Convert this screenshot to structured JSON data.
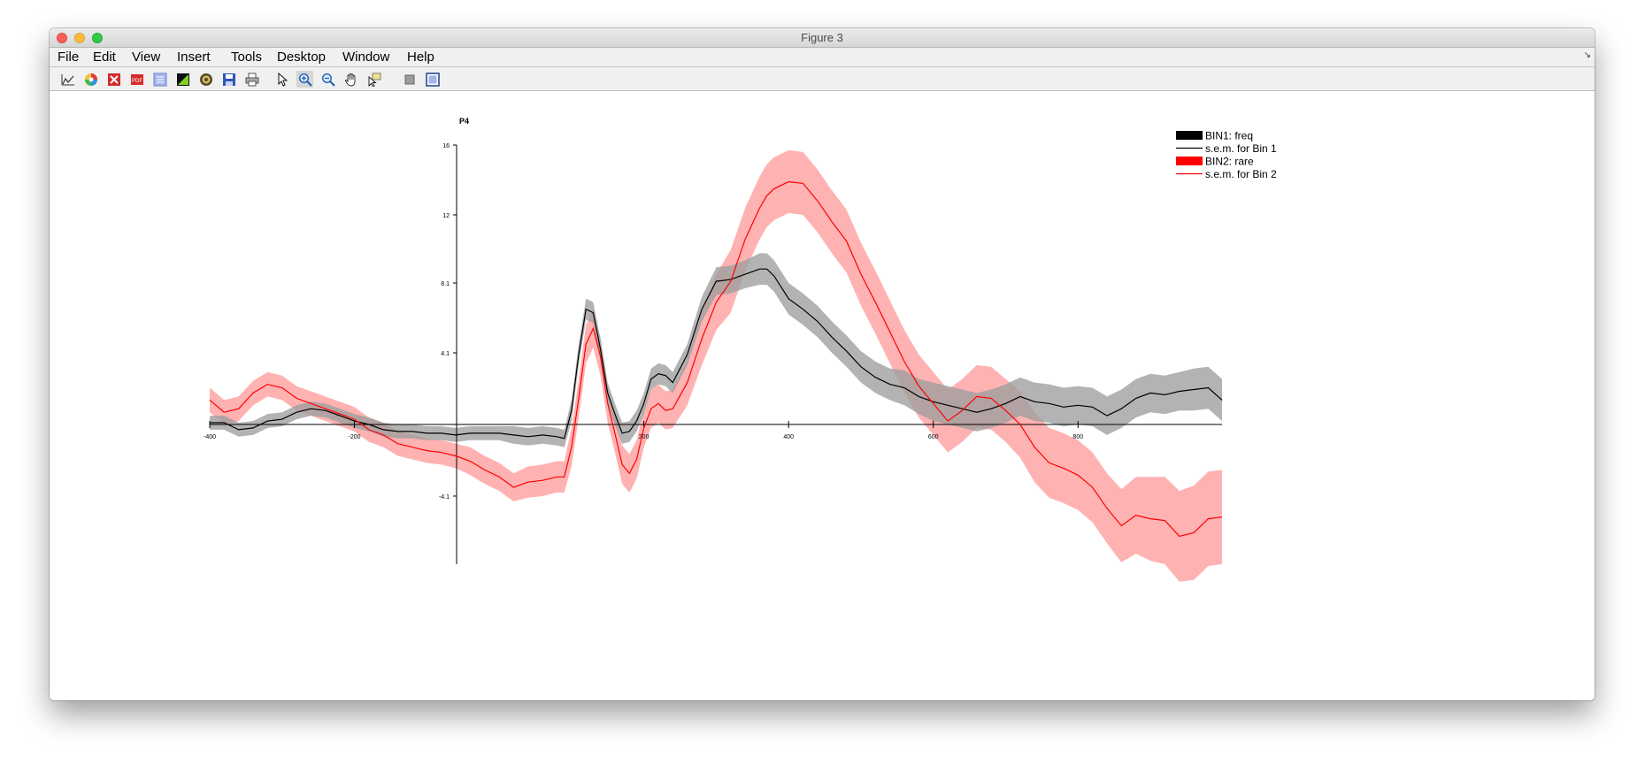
{
  "window": {
    "title": "Figure 3"
  },
  "menu": [
    "File",
    "Edit",
    "View",
    "Insert",
    "Tools",
    "Desktop",
    "Window",
    "Help"
  ],
  "toolbar": [
    "new-figure-icon",
    "colormap-icon",
    "close-figure-icon",
    "export-pdf-icon",
    "insert-colorbar-icon",
    "insert-legend-icon",
    "hide-plot-tools-icon",
    "save-icon",
    "print-icon",
    "pointer-icon",
    "zoom-in-icon",
    "zoom-out-icon",
    "pan-icon",
    "data-cursor-icon",
    "brush-icon",
    "dock-figure-icon"
  ],
  "chart_data": {
    "type": "line",
    "title": "P4",
    "xlabel": "",
    "ylabel": "",
    "xlim": [
      -400,
      999
    ],
    "ylim": [
      -8,
      16
    ],
    "xticks": [
      -400,
      -200,
      200,
      400,
      600,
      800
    ],
    "xtick_labels": [
      "-400",
      "-200",
      "200",
      "400",
      "600",
      "800"
    ],
    "yticks": [
      16,
      12,
      8.1,
      4.1,
      -4.1
    ],
    "ytick_labels": [
      "16",
      "12",
      "8.1",
      "4.1",
      "-4.1"
    ],
    "legend_position": "top-right",
    "legend": [
      "BIN1: freq",
      "s.e.m. for Bin 1",
      "BIN2: rare",
      "s.e.m. for Bin 2"
    ],
    "colors": {
      "bin1": "#000000",
      "bin2": "#ff0000",
      "bin1_band": "#9e9e9e",
      "bin2_band": "#ff9494"
    },
    "series": [
      {
        "name": "BIN1: freq",
        "x": [
          -400,
          -380,
          -360,
          -340,
          -320,
          -300,
          -280,
          -260,
          -240,
          -220,
          -200,
          -180,
          -160,
          -140,
          -120,
          -100,
          -80,
          -60,
          -40,
          -20,
          0,
          20,
          40,
          60,
          80,
          90,
          100,
          110,
          120,
          130,
          140,
          150,
          160,
          170,
          180,
          190,
          200,
          210,
          220,
          230,
          240,
          260,
          280,
          300,
          320,
          340,
          360,
          370,
          380,
          400,
          420,
          440,
          460,
          480,
          500,
          520,
          540,
          560,
          580,
          600,
          620,
          640,
          660,
          680,
          700,
          720,
          740,
          760,
          780,
          800,
          820,
          840,
          860,
          880,
          900,
          920,
          940,
          960,
          980,
          999
        ],
        "y": [
          0.1,
          0.1,
          -0.3,
          -0.2,
          0.2,
          0.3,
          0.7,
          0.9,
          0.8,
          0.5,
          0.2,
          0,
          -0.3,
          -0.4,
          -0.4,
          -0.5,
          -0.5,
          -0.6,
          -0.5,
          -0.5,
          -0.5,
          -0.6,
          -0.7,
          -0.6,
          -0.7,
          -0.8,
          0.8,
          4.0,
          6.6,
          6.4,
          4.3,
          1.8,
          0.6,
          -0.5,
          -0.4,
          0.2,
          1.2,
          2.6,
          2.9,
          2.8,
          2.4,
          4.0,
          6.6,
          8.2,
          8.3,
          8.6,
          8.9,
          8.9,
          8.5,
          7.2,
          6.6,
          5.9,
          5.0,
          4.2,
          3.3,
          2.7,
          2.3,
          2.1,
          1.6,
          1.3,
          1.1,
          0.9,
          0.7,
          0.9,
          1.2,
          1.6,
          1.3,
          1.2,
          1.0,
          1.1,
          1.0,
          0.5,
          0.9,
          1.5,
          1.8,
          1.7,
          1.9,
          2.0,
          2.1,
          1.4
        ],
        "sem": [
          0.4,
          0.4,
          0.4,
          0.4,
          0.4,
          0.4,
          0.4,
          0.4,
          0.4,
          0.4,
          0.4,
          0.4,
          0.4,
          0.4,
          0.4,
          0.4,
          0.4,
          0.4,
          0.4,
          0.4,
          0.4,
          0.5,
          0.5,
          0.5,
          0.5,
          0.5,
          0.6,
          0.6,
          0.6,
          0.6,
          0.6,
          0.6,
          0.6,
          0.6,
          0.6,
          0.6,
          0.6,
          0.6,
          0.6,
          0.6,
          0.6,
          0.6,
          0.7,
          0.8,
          0.8,
          0.8,
          0.9,
          0.9,
          0.9,
          0.9,
          0.9,
          0.9,
          0.9,
          0.9,
          0.9,
          0.9,
          0.9,
          1.0,
          1.0,
          1.1,
          1.1,
          1.1,
          1.1,
          1.1,
          1.1,
          1.1,
          1.1,
          1.1,
          1.1,
          1.1,
          1.1,
          1.1,
          1.1,
          1.1,
          1.1,
          1.1,
          1.1,
          1.2,
          1.2,
          1.2
        ]
      },
      {
        "name": "BIN2: rare",
        "x": [
          -400,
          -380,
          -360,
          -340,
          -320,
          -300,
          -280,
          -260,
          -240,
          -220,
          -200,
          -180,
          -160,
          -140,
          -120,
          -100,
          -80,
          -60,
          -40,
          -20,
          0,
          20,
          40,
          60,
          80,
          90,
          100,
          110,
          120,
          130,
          140,
          150,
          160,
          170,
          180,
          190,
          200,
          210,
          220,
          230,
          240,
          260,
          280,
          300,
          320,
          340,
          360,
          370,
          380,
          400,
          420,
          440,
          460,
          480,
          500,
          520,
          540,
          560,
          580,
          600,
          620,
          640,
          660,
          680,
          700,
          720,
          740,
          760,
          780,
          800,
          820,
          840,
          860,
          880,
          900,
          920,
          940,
          960,
          980,
          999
        ],
        "y": [
          1.4,
          0.7,
          0.9,
          1.8,
          2.3,
          2.1,
          1.5,
          1.2,
          0.9,
          0.6,
          0.3,
          -0.3,
          -0.6,
          -1.1,
          -1.3,
          -1.5,
          -1.6,
          -1.8,
          -2.1,
          -2.6,
          -3.0,
          -3.6,
          -3.3,
          -3.2,
          -3.0,
          -3.0,
          -1.3,
          1.5,
          4.6,
          5.5,
          3.9,
          1.2,
          -0.5,
          -2.3,
          -2.8,
          -2.0,
          -0.2,
          0.9,
          1.2,
          0.8,
          0.9,
          2.4,
          4.9,
          7.0,
          8.2,
          10.6,
          12.4,
          13.1,
          13.5,
          13.9,
          13.8,
          12.8,
          11.6,
          10.5,
          8.6,
          7.0,
          5.3,
          3.6,
          2.2,
          1.2,
          0.2,
          0.8,
          1.6,
          1.5,
          0.8,
          0,
          -1.3,
          -2.2,
          -2.5,
          -2.9,
          -3.6,
          -4.8,
          -5.8,
          -5.2,
          -5.4,
          -5.5,
          -6.4,
          -6.2,
          -5.4,
          -5.3
        ],
        "sem": [
          0.7,
          0.7,
          0.7,
          0.7,
          0.7,
          0.7,
          0.7,
          0.7,
          0.7,
          0.7,
          0.7,
          0.7,
          0.7,
          0.7,
          0.7,
          0.7,
          0.7,
          0.7,
          0.8,
          0.8,
          0.8,
          0.8,
          0.9,
          0.9,
          0.9,
          0.9,
          1.1,
          1.1,
          1.1,
          1.1,
          1.1,
          1.1,
          1.1,
          1.1,
          1.1,
          1.1,
          1.1,
          1.1,
          1.1,
          1.1,
          1.1,
          1.3,
          1.5,
          1.6,
          1.8,
          1.8,
          1.8,
          1.8,
          1.8,
          1.8,
          1.8,
          1.8,
          1.8,
          1.8,
          1.8,
          1.8,
          1.8,
          1.8,
          1.8,
          1.8,
          1.8,
          1.8,
          1.8,
          1.8,
          1.8,
          1.9,
          2.0,
          2.0,
          2.0,
          2.0,
          2.0,
          2.0,
          2.1,
          2.2,
          2.4,
          2.5,
          2.6,
          2.7,
          2.7,
          2.7
        ]
      }
    ]
  }
}
